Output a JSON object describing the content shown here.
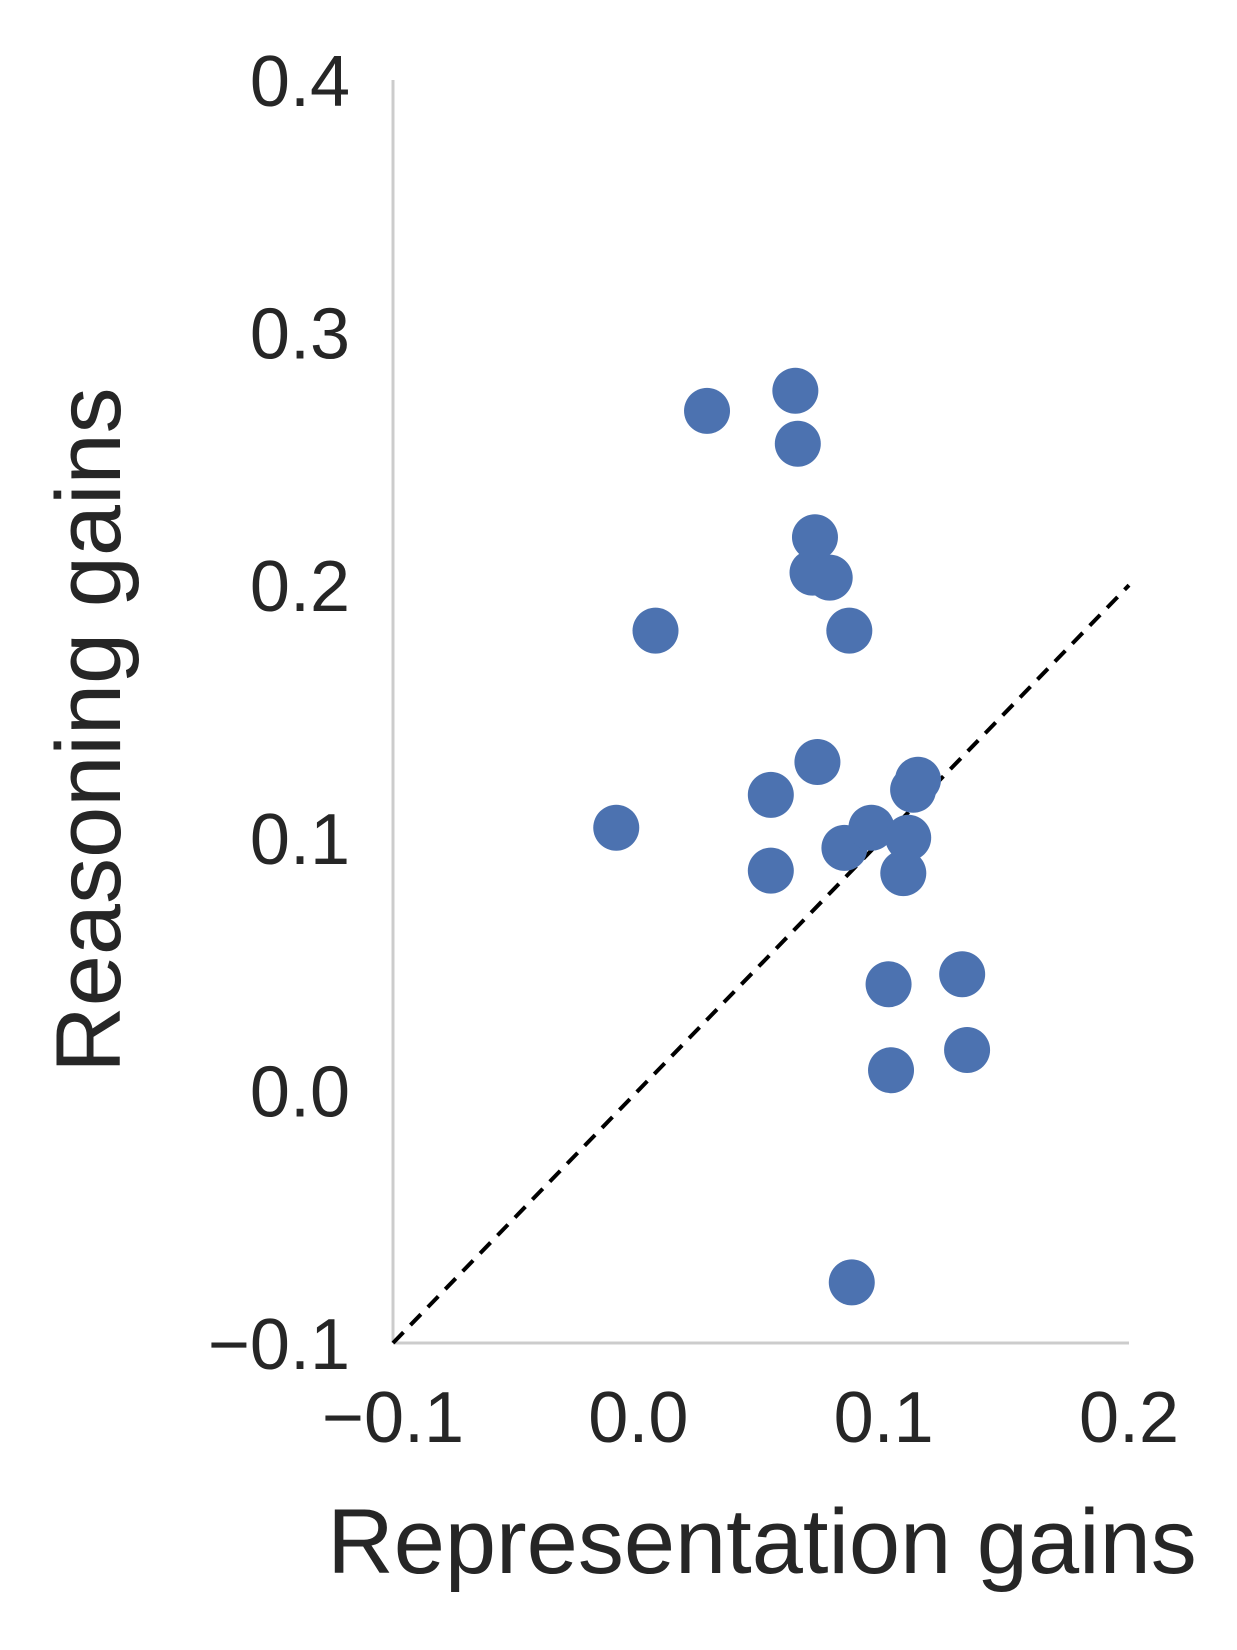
{
  "chart_data": {
    "type": "scatter",
    "title": "",
    "xlabel": "Representation gains",
    "ylabel": "Reasoning gains",
    "xlim": [
      -0.1,
      0.2
    ],
    "ylim": [
      -0.1,
      0.4
    ],
    "x_ticks": [
      "−0.1",
      "0.0",
      "0.1",
      "0.2"
    ],
    "y_ticks": [
      "−0.1",
      "0.0",
      "0.1",
      "0.2",
      "0.3",
      "0.4"
    ],
    "x_tick_values": [
      -0.1,
      0.0,
      0.1,
      0.2
    ],
    "y_tick_values": [
      -0.1,
      0.0,
      0.1,
      0.2,
      0.3,
      0.4
    ],
    "grid": false,
    "reference_line": {
      "from": [
        -0.1,
        -0.1
      ],
      "to": [
        0.2,
        0.2
      ],
      "style": "dashed",
      "color": "#000000"
    },
    "marker_color": "#4c72b0",
    "axis_color": "#cccccc",
    "points": [
      {
        "x": -0.009,
        "y": 0.104
      },
      {
        "x": 0.007,
        "y": 0.182
      },
      {
        "x": 0.028,
        "y": 0.269
      },
      {
        "x": 0.064,
        "y": 0.277
      },
      {
        "x": 0.065,
        "y": 0.256
      },
      {
        "x": 0.072,
        "y": 0.219
      },
      {
        "x": 0.071,
        "y": 0.205
      },
      {
        "x": 0.078,
        "y": 0.203
      },
      {
        "x": 0.086,
        "y": 0.182
      },
      {
        "x": 0.073,
        "y": 0.13
      },
      {
        "x": 0.054,
        "y": 0.117
      },
      {
        "x": 0.054,
        "y": 0.087
      },
      {
        "x": 0.084,
        "y": 0.096
      },
      {
        "x": 0.095,
        "y": 0.104
      },
      {
        "x": 0.112,
        "y": 0.119
      },
      {
        "x": 0.114,
        "y": 0.123
      },
      {
        "x": 0.11,
        "y": 0.1
      },
      {
        "x": 0.108,
        "y": 0.086
      },
      {
        "x": 0.102,
        "y": 0.042
      },
      {
        "x": 0.132,
        "y": 0.046
      },
      {
        "x": 0.134,
        "y": 0.016
      },
      {
        "x": 0.103,
        "y": 0.008
      },
      {
        "x": 0.087,
        "y": -0.076
      }
    ]
  }
}
